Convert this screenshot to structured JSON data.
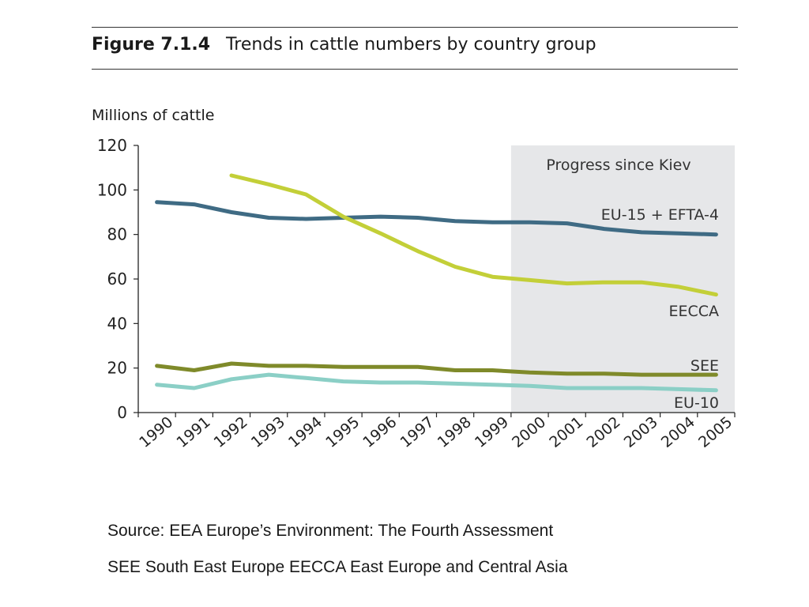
{
  "figure": {
    "number": "Figure 7.1.4",
    "title": "Trends in cattle numbers by country group"
  },
  "chart_data": {
    "type": "line",
    "ylabel": "Millions of cattle",
    "ylim": [
      0,
      120
    ],
    "yticks": [
      0,
      20,
      40,
      60,
      80,
      100,
      120
    ],
    "x": [
      "1990",
      "1991",
      "1992",
      "1993",
      "1994",
      "1995",
      "1996",
      "1997",
      "1998",
      "1999",
      "2000",
      "2001",
      "2002",
      "2003",
      "2004",
      "2005"
    ],
    "highlight": {
      "from": "2000",
      "to": "2005",
      "label": "Progress since Kiev",
      "color": "#e6e7e9"
    },
    "series": [
      {
        "name": "EU-15 + EFTA-4",
        "color": "#3f6b84",
        "values": [
          94.5,
          93.5,
          90,
          87.5,
          87,
          87.5,
          88,
          87.5,
          86,
          85.5,
          85.5,
          85,
          82.5,
          81,
          80.5,
          80
        ]
      },
      {
        "name": "EECCA",
        "color": "#c3cf38",
        "values": [
          null,
          null,
          106.5,
          102.5,
          98,
          88,
          80.5,
          72.5,
          65.5,
          61,
          59.5,
          58,
          58.5,
          58.5,
          56.5,
          53
        ]
      },
      {
        "name": "SEE",
        "color": "#7f8a2a",
        "values": [
          21,
          19,
          22,
          21,
          21,
          20.5,
          20.5,
          20.5,
          19,
          19,
          18,
          17.5,
          17.5,
          17,
          17,
          17
        ]
      },
      {
        "name": "EU-10",
        "color": "#8bcfc6",
        "values": [
          12.5,
          11,
          15,
          17,
          15.5,
          14,
          13.5,
          13.5,
          13,
          12.5,
          12,
          11,
          11,
          11,
          10.5,
          10
        ]
      }
    ]
  },
  "source": {
    "line1": "Source:  EEA Europe’s Environment: The Fourth Assessment",
    "line2": "SEE South East Europe  EECCA East Europe and Central Asia"
  }
}
